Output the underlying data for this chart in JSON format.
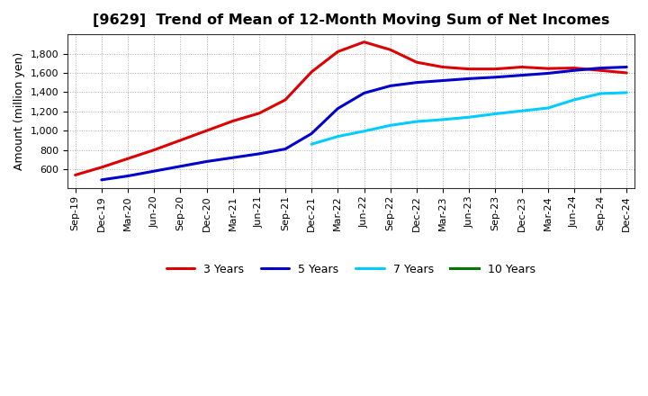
{
  "title": "[9629]  Trend of Mean of 12-Month Moving Sum of Net Incomes",
  "ylabel": "Amount (million yen)",
  "background_color": "#ffffff",
  "grid_color": "#aaaaaa",
  "title_fontsize": 11.5,
  "label_fontsize": 9,
  "tick_fontsize": 8,
  "x_labels": [
    "Sep-19",
    "Dec-19",
    "Mar-20",
    "Jun-20",
    "Sep-20",
    "Dec-20",
    "Mar-21",
    "Jun-21",
    "Sep-21",
    "Dec-21",
    "Mar-22",
    "Jun-22",
    "Sep-22",
    "Dec-22",
    "Mar-23",
    "Jun-23",
    "Sep-23",
    "Dec-23",
    "Mar-24",
    "Jun-24",
    "Sep-24",
    "Dec-24"
  ],
  "series": [
    {
      "name": "3 Years",
      "color": "#dd0000",
      "data_labels": [
        "Sep-19",
        "Dec-19",
        "Mar-20",
        "Jun-20",
        "Sep-20",
        "Dec-20",
        "Mar-21",
        "Jun-21",
        "Sep-21",
        "Dec-21",
        "Mar-22",
        "Jun-22",
        "Sep-22",
        "Dec-22",
        "Mar-23",
        "Jun-23",
        "Sep-23",
        "Dec-23",
        "Mar-24",
        "Jun-24",
        "Sep-24",
        "Dec-24"
      ],
      "data_values": [
        540,
        620,
        710,
        800,
        900,
        1000,
        1100,
        1180,
        1320,
        1610,
        1820,
        1920,
        1840,
        1710,
        1660,
        1640,
        1640,
        1660,
        1645,
        1650,
        1625,
        1600
      ]
    },
    {
      "name": "5 Years",
      "color": "#0000cc",
      "data_labels": [
        "Dec-19",
        "Mar-20",
        "Jun-20",
        "Sep-20",
        "Dec-20",
        "Mar-21",
        "Jun-21",
        "Sep-21",
        "Dec-21",
        "Mar-22",
        "Jun-22",
        "Sep-22",
        "Dec-22",
        "Mar-23",
        "Jun-23",
        "Sep-23",
        "Dec-23",
        "Mar-24",
        "Jun-24",
        "Sep-24",
        "Dec-24"
      ],
      "data_values": [
        490,
        530,
        580,
        630,
        680,
        720,
        760,
        810,
        970,
        1230,
        1390,
        1465,
        1500,
        1520,
        1540,
        1555,
        1575,
        1595,
        1625,
        1650,
        1660
      ]
    },
    {
      "name": "7 Years",
      "color": "#00ccff",
      "data_labels": [
        "Dec-21",
        "Mar-22",
        "Jun-22",
        "Sep-22",
        "Dec-22",
        "Mar-23",
        "Jun-23",
        "Sep-23",
        "Dec-23",
        "Mar-24",
        "Jun-24",
        "Sep-24",
        "Dec-24"
      ],
      "data_values": [
        860,
        940,
        995,
        1055,
        1095,
        1115,
        1140,
        1175,
        1205,
        1235,
        1320,
        1385,
        1395
      ]
    },
    {
      "name": "10 Years",
      "color": "#007700",
      "data_labels": [],
      "data_values": []
    }
  ],
  "ylim": [
    400,
    2000
  ],
  "yticks": [
    600,
    800,
    1000,
    1200,
    1400,
    1600,
    1800
  ]
}
